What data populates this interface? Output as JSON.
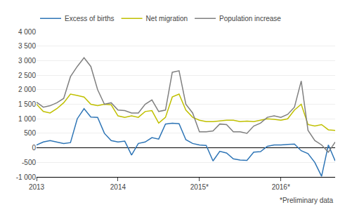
{
  "chart_data": {
    "type": "line",
    "categories": [
      "2013",
      null,
      null,
      null,
      null,
      null,
      null,
      null,
      null,
      null,
      null,
      null,
      "2014",
      null,
      null,
      null,
      null,
      null,
      null,
      null,
      null,
      null,
      null,
      null,
      "2015*",
      null,
      null,
      null,
      null,
      null,
      null,
      null,
      null,
      null,
      null,
      null,
      "2016*",
      null,
      null,
      null,
      null,
      null,
      null,
      null,
      null
    ],
    "series": [
      {
        "name": "Excess of births",
        "color": "#2E75B6",
        "values": [
          100,
          200,
          250,
          200,
          150,
          180,
          1000,
          1350,
          1060,
          1050,
          500,
          250,
          200,
          230,
          -250,
          150,
          200,
          350,
          300,
          820,
          850,
          830,
          280,
          150,
          100,
          80,
          -450,
          -120,
          -180,
          -380,
          -420,
          -430,
          -150,
          -130,
          50,
          100,
          100,
          120,
          130,
          -100,
          -200,
          -500,
          -980,
          100,
          -450
        ]
      },
      {
        "name": "Net migration",
        "color": "#C0C000",
        "values": [
          1500,
          1250,
          1200,
          1350,
          1550,
          1850,
          1800,
          1750,
          1500,
          1450,
          1500,
          1480,
          1100,
          1050,
          1100,
          1050,
          1250,
          1280,
          850,
          1050,
          1750,
          1850,
          1300,
          1050,
          950,
          900,
          900,
          920,
          950,
          950,
          900,
          920,
          900,
          950,
          1000,
          980,
          950,
          1000,
          1300,
          1500,
          800,
          750,
          800,
          620,
          600
        ]
      },
      {
        "name": "Population increase",
        "color": "#808080",
        "values": [
          1570,
          1400,
          1450,
          1550,
          1700,
          2450,
          2800,
          3100,
          2800,
          2000,
          1500,
          1550,
          1300,
          1280,
          1200,
          1200,
          1500,
          1650,
          1250,
          1300,
          2600,
          2650,
          1500,
          1200,
          550,
          550,
          580,
          820,
          800,
          550,
          550,
          500,
          750,
          850,
          1050,
          1100,
          1050,
          1150,
          1400,
          2300,
          600,
          250,
          100,
          -150,
          200
        ]
      }
    ],
    "ylim": [
      -1000,
      4000
    ],
    "yticks": [
      {
        "value": -1000,
        "label": "-1 000"
      },
      -500,
      0,
      500,
      {
        "value": 1000,
        "label": "1 000"
      },
      {
        "value": 1500,
        "label": "1 500"
      },
      {
        "value": 2000,
        "label": "2 000"
      },
      {
        "value": 2500,
        "label": "2 500"
      },
      {
        "value": 3000,
        "label": "3 000"
      },
      {
        "value": 3500,
        "label": "3 500"
      },
      {
        "value": 4000,
        "label": "4 000"
      }
    ],
    "grid": true,
    "legend": "upper left",
    "annotations": [
      "*Preliminary data"
    ]
  }
}
